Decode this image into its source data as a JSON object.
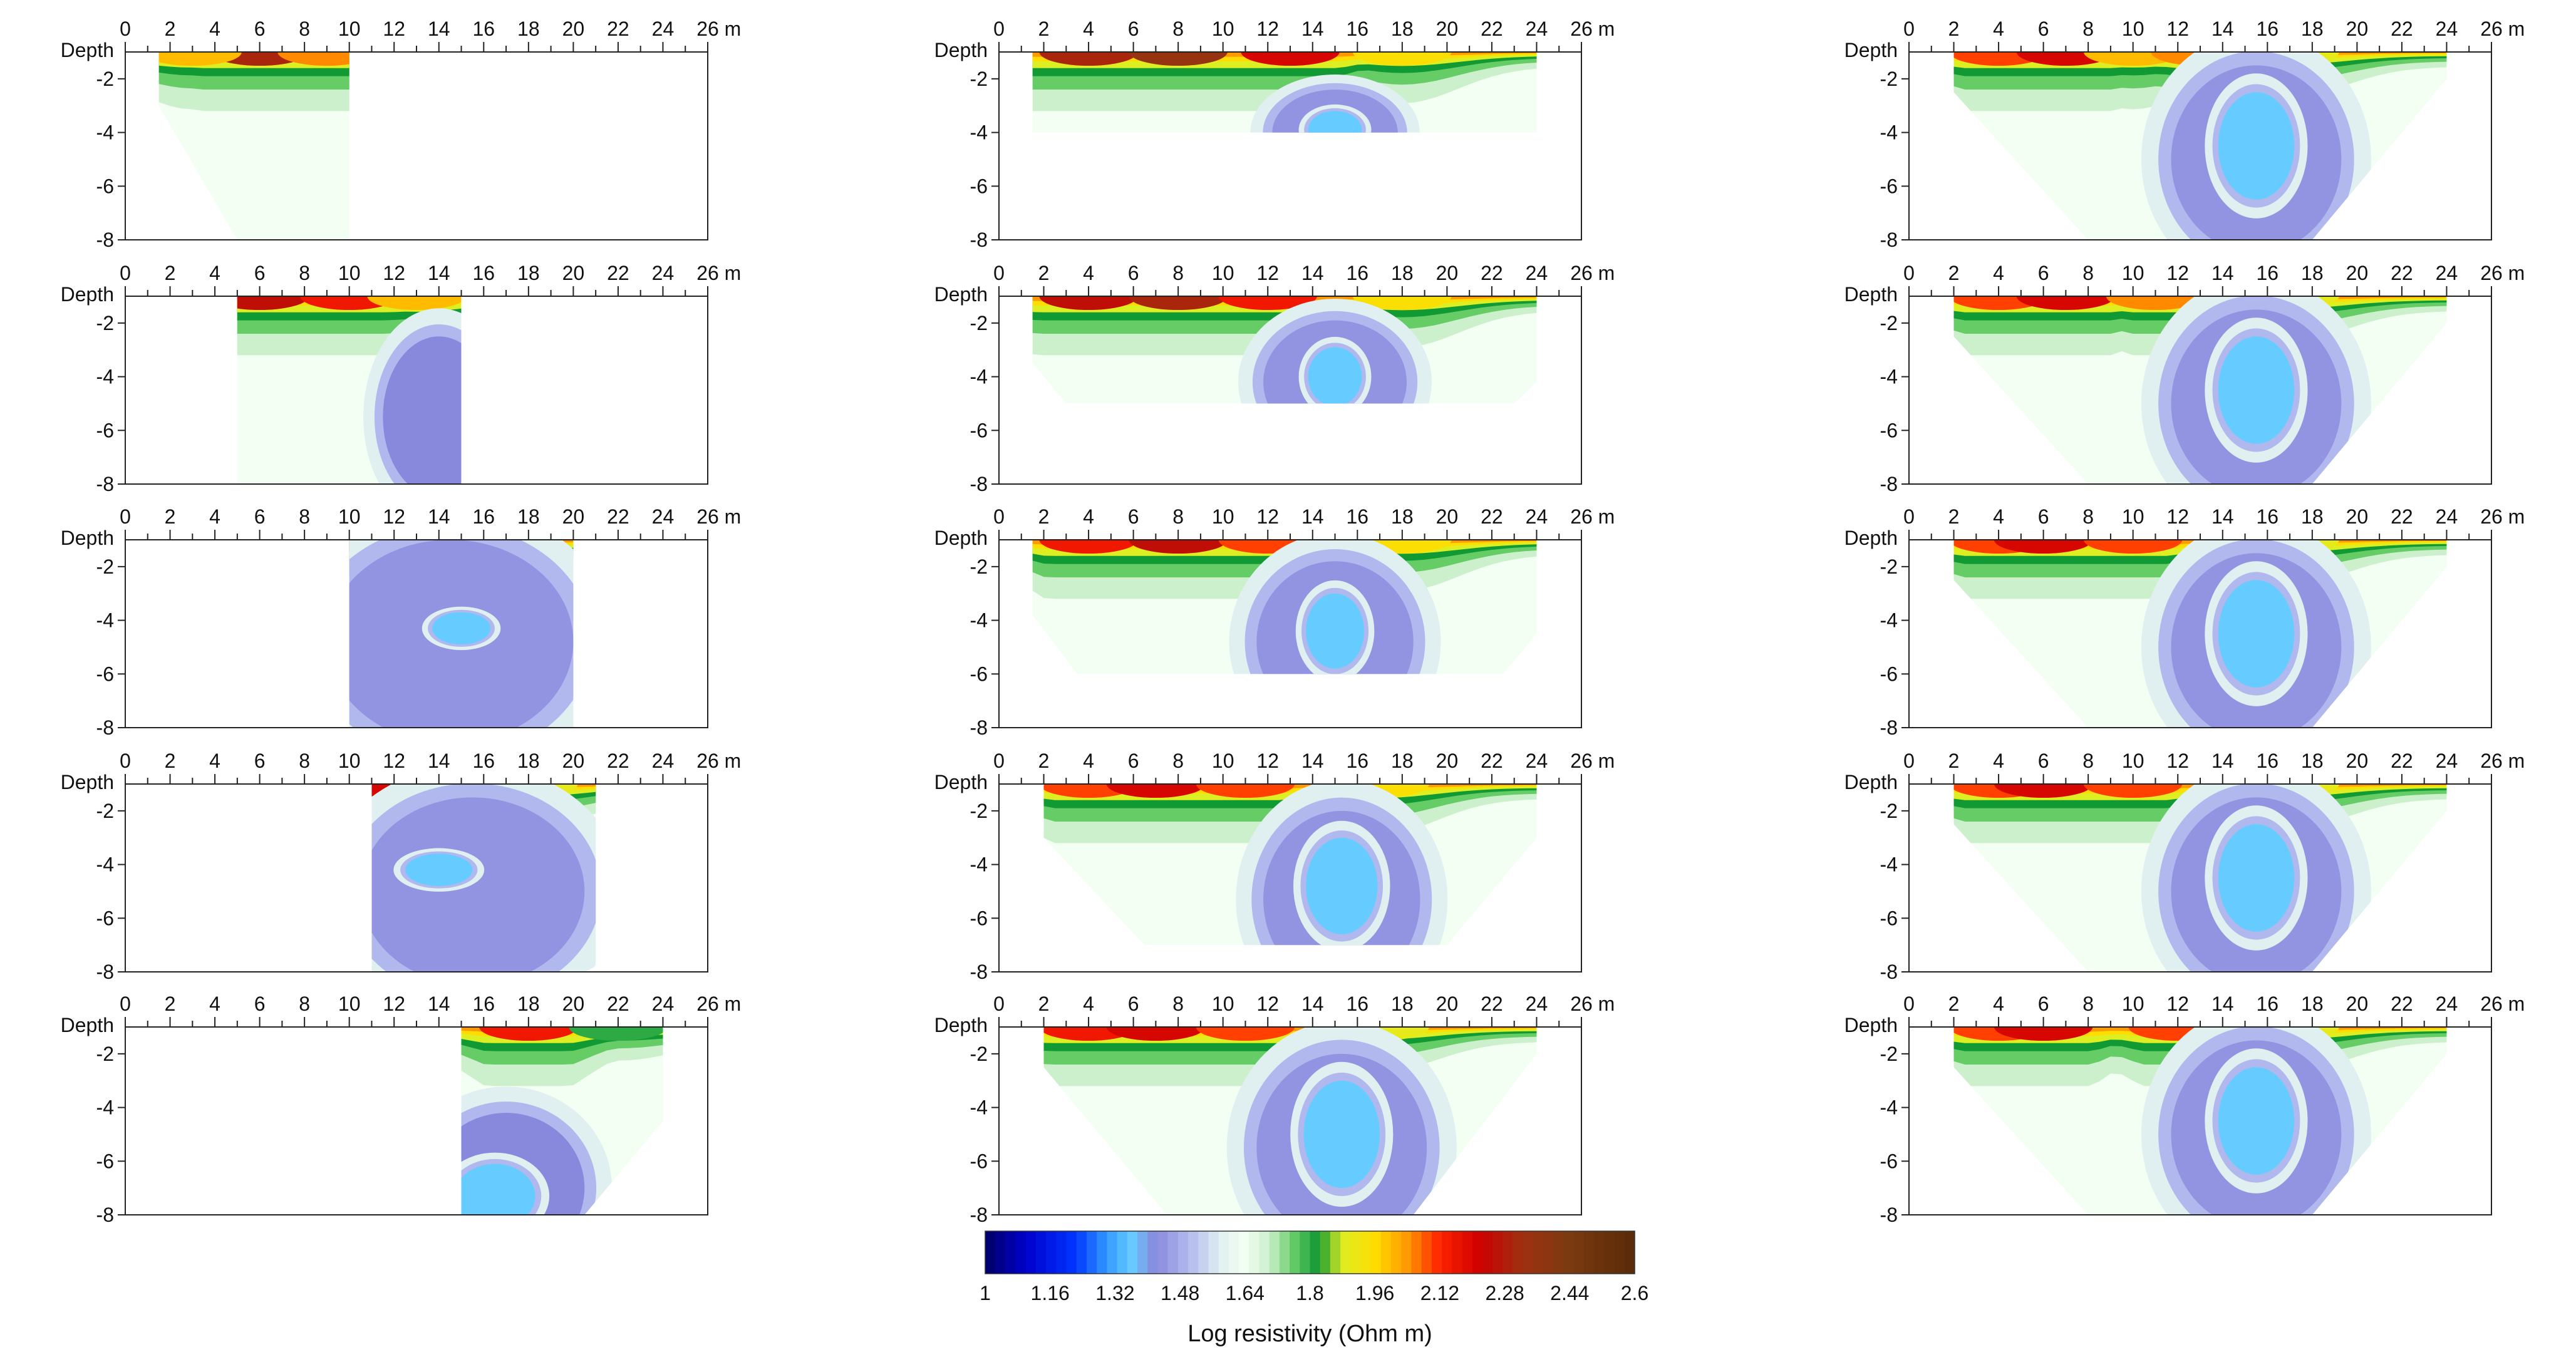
{
  "chart_data": {
    "type": "heatmap",
    "description_note": "",
    "x_axis": {
      "unit": "m",
      "ticks": [
        0,
        2,
        4,
        6,
        8,
        10,
        12,
        14,
        16,
        18,
        20,
        22,
        24,
        26
      ],
      "xlim": [
        0,
        26
      ]
    },
    "y_axis": {
      "label": "Depth",
      "ticks": [
        -2,
        -4,
        -6,
        -8
      ],
      "ylim": [
        -8,
        -1
      ]
    },
    "colorbar": {
      "title": "Log resistivity (Ohm m)",
      "ticks": [
        "1",
        "1.16",
        "1.32",
        "1.48",
        "1.64",
        "1.8",
        "1.96",
        "2.12",
        "2.28",
        "2.44",
        "2.6"
      ],
      "range": [
        1,
        2.6
      ],
      "stops": [
        {
          "v": 1.0,
          "c": "#000066"
        },
        {
          "v": 1.1,
          "c": "#0000cc"
        },
        {
          "v": 1.22,
          "c": "#0033ff"
        },
        {
          "v": 1.3,
          "c": "#3399ff"
        },
        {
          "v": 1.36,
          "c": "#66ccff"
        },
        {
          "v": 1.42,
          "c": "#8888dd"
        },
        {
          "v": 1.5,
          "c": "#b0b8ee"
        },
        {
          "v": 1.58,
          "c": "#e0f0f0"
        },
        {
          "v": 1.64,
          "c": "#f2fff2"
        },
        {
          "v": 1.7,
          "c": "#ccf0cc"
        },
        {
          "v": 1.76,
          "c": "#66cc66"
        },
        {
          "v": 1.82,
          "c": "#119933"
        },
        {
          "v": 1.88,
          "c": "#ddee22"
        },
        {
          "v": 1.96,
          "c": "#ffdd00"
        },
        {
          "v": 2.04,
          "c": "#ff9900"
        },
        {
          "v": 2.12,
          "c": "#ff2200"
        },
        {
          "v": 2.22,
          "c": "#cc0000"
        },
        {
          "v": 2.32,
          "c": "#a03010"
        },
        {
          "v": 2.44,
          "c": "#7a3a10"
        },
        {
          "v": 2.6,
          "c": "#5a2a08"
        }
      ]
    },
    "panels": [
      {
        "col": 0,
        "row": 0,
        "outline": [
          [
            1.5,
            -1
          ],
          [
            10,
            -1
          ],
          [
            10,
            -8
          ],
          [
            5,
            -8
          ],
          [
            1.5,
            -3
          ]
        ],
        "cap": [
          {
            "x": 6,
            "v": 2.3
          },
          {
            "x": 3,
            "v": 2.0
          },
          {
            "x": 9,
            "v": 2.05
          }
        ],
        "features": []
      },
      {
        "col": 0,
        "row": 1,
        "outline": [
          [
            5,
            -1
          ],
          [
            15,
            -1
          ],
          [
            15,
            -8
          ],
          [
            5,
            -8
          ]
        ],
        "cap": [
          {
            "x": 6,
            "v": 2.25
          },
          {
            "x": 10,
            "v": 2.15
          },
          {
            "x": 13,
            "v": 2.0
          }
        ],
        "features": [
          {
            "x": 14,
            "y": -5.5,
            "rx": 2.5,
            "ry": 3,
            "v": 1.42
          }
        ]
      },
      {
        "col": 0,
        "row": 2,
        "outline": [
          [
            10,
            -1
          ],
          [
            20,
            -1
          ],
          [
            20,
            -8
          ],
          [
            10,
            -8
          ]
        ],
        "cap": [
          {
            "x": 11,
            "v": 2.2
          },
          {
            "x": 14,
            "v": 2.0
          },
          {
            "x": 17,
            "v": 1.9
          }
        ],
        "features": [
          {
            "x": 14.5,
            "y": -4.8,
            "rx": 5.5,
            "ry": 3.8,
            "v": 1.44
          },
          {
            "x": 15,
            "y": -4.3,
            "rx": 1.3,
            "ry": 0.6,
            "v": 1.36
          }
        ]
      },
      {
        "col": 0,
        "row": 3,
        "outline": [
          [
            11,
            -1
          ],
          [
            21,
            -1
          ],
          [
            21,
            -7.8
          ],
          [
            20.5,
            -8
          ],
          [
            11,
            -8
          ]
        ],
        "cap": [
          {
            "x": 12,
            "v": 2.2
          },
          {
            "x": 15,
            "v": 2.0
          },
          {
            "x": 18,
            "v": 1.9
          }
        ],
        "features": [
          {
            "x": 15.5,
            "y": -5,
            "rx": 5,
            "ry": 3.5,
            "v": 1.44
          },
          {
            "x": 14,
            "y": -4.2,
            "rx": 1.5,
            "ry": 0.6,
            "v": 1.36
          }
        ]
      },
      {
        "col": 0,
        "row": 4,
        "outline": [
          [
            15,
            -1
          ],
          [
            24,
            -1
          ],
          [
            24,
            -4.5
          ],
          [
            20.5,
            -8
          ],
          [
            15,
            -8
          ]
        ],
        "cap": [
          {
            "x": 18,
            "v": 2.15
          },
          {
            "x": 22,
            "v": 1.8
          }
        ],
        "features": [
          {
            "x": 17,
            "y": -7,
            "rx": 3.5,
            "ry": 2.8,
            "v": 1.42
          },
          {
            "x": 16.5,
            "y": -7.3,
            "rx": 1.8,
            "ry": 1.2,
            "v": 1.36
          }
        ]
      },
      {
        "col": 1,
        "row": 0,
        "outline": [
          [
            1.5,
            -1
          ],
          [
            24,
            -1
          ],
          [
            24,
            -4
          ],
          [
            1.5,
            -4
          ]
        ],
        "cap": [
          {
            "x": 4,
            "v": 2.3
          },
          {
            "x": 8,
            "v": 2.35
          },
          {
            "x": 13,
            "v": 2.2
          },
          {
            "x": 18,
            "v": 1.95
          }
        ],
        "features": [
          {
            "x": 15,
            "y": -4,
            "rx": 2.8,
            "ry": 1.6,
            "v": 1.44
          },
          {
            "x": 15,
            "y": -3.9,
            "rx": 1.2,
            "ry": 0.7,
            "v": 1.36
          }
        ]
      },
      {
        "col": 1,
        "row": 1,
        "outline": [
          [
            1.5,
            -1
          ],
          [
            24,
            -1
          ],
          [
            24,
            -4.2
          ],
          [
            23,
            -5
          ],
          [
            3,
            -5
          ],
          [
            1.5,
            -3.5
          ]
        ],
        "cap": [
          {
            "x": 4,
            "v": 2.25
          },
          {
            "x": 8,
            "v": 2.3
          },
          {
            "x": 12,
            "v": 2.15
          },
          {
            "x": 18,
            "v": 1.95
          }
        ],
        "features": [
          {
            "x": 15,
            "y": -4.2,
            "rx": 3.2,
            "ry": 2.3,
            "v": 1.44
          },
          {
            "x": 15,
            "y": -4,
            "rx": 1.2,
            "ry": 1.1,
            "v": 1.36
          }
        ]
      },
      {
        "col": 1,
        "row": 2,
        "outline": [
          [
            1.5,
            -1
          ],
          [
            24,
            -1
          ],
          [
            24,
            -4.5
          ],
          [
            22.5,
            -6
          ],
          [
            3.5,
            -6
          ],
          [
            1.5,
            -3.8
          ]
        ],
        "cap": [
          {
            "x": 4,
            "v": 2.15
          },
          {
            "x": 8,
            "v": 2.25
          },
          {
            "x": 12,
            "v": 2.1
          },
          {
            "x": 18,
            "v": 1.95
          }
        ],
        "features": [
          {
            "x": 15,
            "y": -4.8,
            "rx": 3.5,
            "ry": 3,
            "v": 1.44
          },
          {
            "x": 15,
            "y": -4.4,
            "rx": 1.3,
            "ry": 1.4,
            "v": 1.36
          }
        ]
      },
      {
        "col": 1,
        "row": 3,
        "outline": [
          [
            2,
            -1
          ],
          [
            24,
            -1
          ],
          [
            24,
            -3
          ],
          [
            20,
            -7
          ],
          [
            6.5,
            -7
          ],
          [
            2,
            -3
          ]
        ],
        "cap": [
          {
            "x": 4,
            "v": 2.1
          },
          {
            "x": 7,
            "v": 2.2
          },
          {
            "x": 11,
            "v": 2.1
          },
          {
            "x": 17,
            "v": 1.95
          }
        ],
        "features": [
          {
            "x": 15.3,
            "y": -5.3,
            "rx": 3.5,
            "ry": 3.3,
            "v": 1.44
          },
          {
            "x": 15.3,
            "y": -4.8,
            "rx": 1.6,
            "ry": 1.8,
            "v": 1.36
          }
        ]
      },
      {
        "col": 1,
        "row": 4,
        "outline": [
          [
            2,
            -1
          ],
          [
            24,
            -1
          ],
          [
            24,
            -2
          ],
          [
            18.5,
            -8
          ],
          [
            7.5,
            -8
          ],
          [
            2,
            -2.5
          ]
        ],
        "cap": [
          {
            "x": 4,
            "v": 2.15
          },
          {
            "x": 7,
            "v": 2.2
          },
          {
            "x": 11,
            "v": 2.1
          },
          {
            "x": 17,
            "v": 1.9
          }
        ],
        "features": [
          {
            "x": 15.3,
            "y": -5.5,
            "rx": 3.8,
            "ry": 3.5,
            "v": 1.44
          },
          {
            "x": 15.3,
            "y": -5,
            "rx": 1.7,
            "ry": 2,
            "v": 1.36
          }
        ]
      },
      {
        "col": 2,
        "row": 0,
        "outline": [
          [
            2,
            -1
          ],
          [
            24,
            -1
          ],
          [
            24,
            -2
          ],
          [
            18,
            -8
          ],
          [
            8,
            -8
          ],
          [
            2,
            -2.5
          ]
        ],
        "cap": [
          {
            "x": 4,
            "v": 2.1
          },
          {
            "x": 7,
            "v": 2.2
          },
          {
            "x": 10,
            "v": 2.0
          },
          {
            "x": 13,
            "v": 2.05
          },
          {
            "x": 17,
            "v": 1.9
          }
        ],
        "features": [
          {
            "x": 15.5,
            "y": -5,
            "rx": 3.8,
            "ry": 3.5,
            "v": 1.44
          },
          {
            "x": 15.5,
            "y": -4.5,
            "rx": 1.7,
            "ry": 2,
            "v": 1.36
          }
        ]
      },
      {
        "col": 2,
        "row": 1,
        "outline": [
          [
            2,
            -1
          ],
          [
            24,
            -1
          ],
          [
            24,
            -2
          ],
          [
            18,
            -8
          ],
          [
            8,
            -8
          ],
          [
            2,
            -2.5
          ]
        ],
        "cap": [
          {
            "x": 4,
            "v": 2.1
          },
          {
            "x": 7,
            "v": 2.2
          },
          {
            "x": 11,
            "v": 2.05
          },
          {
            "x": 17,
            "v": 1.9
          }
        ],
        "features": [
          {
            "x": 15.5,
            "y": -5,
            "rx": 3.8,
            "ry": 3.5,
            "v": 1.44
          },
          {
            "x": 15.5,
            "y": -4.5,
            "rx": 1.7,
            "ry": 2,
            "v": 1.36
          }
        ]
      },
      {
        "col": 2,
        "row": 2,
        "outline": [
          [
            2,
            -1
          ],
          [
            24,
            -1
          ],
          [
            24,
            -2
          ],
          [
            18,
            -8
          ],
          [
            8,
            -8
          ],
          [
            2,
            -2.5
          ]
        ],
        "cap": [
          {
            "x": 4,
            "v": 2.1
          },
          {
            "x": 6,
            "v": 2.2
          },
          {
            "x": 10,
            "v": 2.1
          },
          {
            "x": 17,
            "v": 1.9
          }
        ],
        "features": [
          {
            "x": 15.5,
            "y": -5,
            "rx": 3.8,
            "ry": 3.5,
            "v": 1.44
          },
          {
            "x": 15.5,
            "y": -4.5,
            "rx": 1.7,
            "ry": 2,
            "v": 1.36
          }
        ]
      },
      {
        "col": 2,
        "row": 3,
        "outline": [
          [
            2,
            -1
          ],
          [
            24,
            -1
          ],
          [
            24,
            -2
          ],
          [
            18,
            -8
          ],
          [
            8,
            -8
          ],
          [
            2,
            -2.5
          ]
        ],
        "cap": [
          {
            "x": 4,
            "v": 2.1
          },
          {
            "x": 6,
            "v": 2.2
          },
          {
            "x": 10,
            "v": 2.1
          },
          {
            "x": 17,
            "v": 1.9
          }
        ],
        "features": [
          {
            "x": 15.5,
            "y": -5,
            "rx": 3.8,
            "ry": 3.5,
            "v": 1.44
          },
          {
            "x": 15.5,
            "y": -4.5,
            "rx": 1.7,
            "ry": 2,
            "v": 1.36
          }
        ]
      },
      {
        "col": 2,
        "row": 4,
        "outline": [
          [
            2,
            -1
          ],
          [
            24,
            -1
          ],
          [
            24,
            -2
          ],
          [
            18,
            -8
          ],
          [
            8,
            -8
          ],
          [
            2,
            -2.5
          ]
        ],
        "cap": [
          {
            "x": 4,
            "v": 2.1
          },
          {
            "x": 6,
            "v": 2.2
          },
          {
            "x": 12,
            "v": 2.1
          },
          {
            "x": 17,
            "v": 1.9
          }
        ],
        "features": [
          {
            "x": 15.5,
            "y": -5,
            "rx": 3.8,
            "ry": 3.5,
            "v": 1.44
          },
          {
            "x": 15.5,
            "y": -4.5,
            "rx": 1.7,
            "ry": 2,
            "v": 1.36
          }
        ]
      }
    ]
  }
}
